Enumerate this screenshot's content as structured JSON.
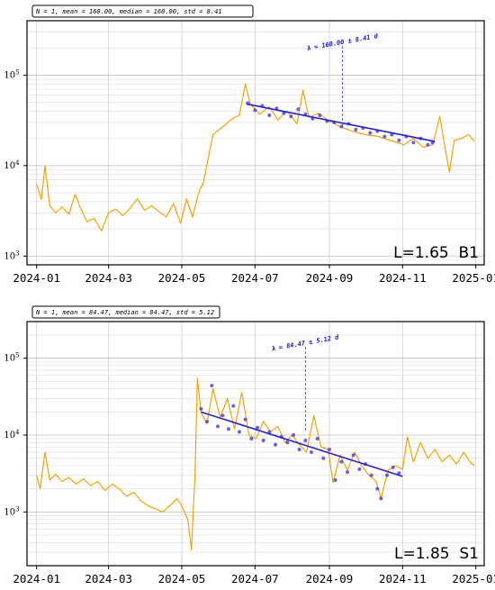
{
  "chart_data": [
    {
      "type": "line",
      "stats_text": "N = 1, mean = 160.00, median = 160.00, std = 8.41",
      "panel_label": "L=1.65  B1",
      "lambda_text": "λ = 160.00 ± 8.41 d",
      "lambda_date": "2024-09-12",
      "y_scale": "log",
      "ylim": [
        800,
        400000
      ],
      "xlim": [
        "2023-12-24",
        "2025-01-08"
      ],
      "x_ticks": [
        "2024-01",
        "2024-03",
        "2024-05",
        "2024-07",
        "2024-09",
        "2024-11",
        "2025-01"
      ],
      "y_ticks": [
        {
          "base": "10",
          "exp": "3",
          "value": 1000
        },
        {
          "base": "10",
          "exp": "4",
          "value": 10000
        },
        {
          "base": "10",
          "exp": "5",
          "value": 100000
        }
      ],
      "grid": true,
      "series": [
        {
          "role": "flux",
          "color": "#f5a300",
          "points": [
            [
              "2024-01-01",
              6300
            ],
            [
              "2024-01-05",
              4200
            ],
            [
              "2024-01-08",
              10000
            ],
            [
              "2024-01-12",
              3600
            ],
            [
              "2024-01-17",
              3000
            ],
            [
              "2024-01-22",
              3500
            ],
            [
              "2024-01-28",
              2900
            ],
            [
              "2024-02-02",
              4800
            ],
            [
              "2024-02-07",
              3300
            ],
            [
              "2024-02-12",
              2400
            ],
            [
              "2024-02-18",
              2600
            ],
            [
              "2024-02-24",
              1900
            ],
            [
              "2024-03-01",
              3000
            ],
            [
              "2024-03-07",
              3300
            ],
            [
              "2024-03-13",
              2800
            ],
            [
              "2024-03-19",
              3400
            ],
            [
              "2024-03-25",
              4300
            ],
            [
              "2024-03-31",
              3200
            ],
            [
              "2024-04-06",
              3600
            ],
            [
              "2024-04-12",
              3100
            ],
            [
              "2024-04-18",
              2700
            ],
            [
              "2024-04-24",
              3800
            ],
            [
              "2024-04-30",
              2300
            ],
            [
              "2024-05-05",
              4300
            ],
            [
              "2024-05-10",
              2700
            ],
            [
              "2024-05-15",
              5000
            ],
            [
              "2024-05-19",
              6500
            ],
            [
              "2024-05-23",
              12000
            ],
            [
              "2024-05-27",
              22000
            ],
            [
              "2024-06-01",
              25000
            ],
            [
              "2024-06-06",
              28000
            ],
            [
              "2024-06-12",
              33000
            ],
            [
              "2024-06-18",
              36000
            ],
            [
              "2024-06-23",
              80000
            ],
            [
              "2024-06-27",
              48000
            ],
            [
              "2024-07-05",
              37000
            ],
            [
              "2024-07-13",
              45000
            ],
            [
              "2024-07-20",
              32000
            ],
            [
              "2024-07-28",
              40000
            ],
            [
              "2024-08-05",
              29000
            ],
            [
              "2024-08-10",
              68000
            ],
            [
              "2024-08-15",
              34000
            ],
            [
              "2024-08-23",
              38000
            ],
            [
              "2024-09-01",
              31000
            ],
            [
              "2024-09-10",
              27000
            ],
            [
              "2024-09-20",
              24000
            ],
            [
              "2024-10-01",
              22000
            ],
            [
              "2024-10-12",
              21000
            ],
            [
              "2024-10-22",
              19000
            ],
            [
              "2024-11-02",
              17000
            ],
            [
              "2024-11-10",
              20000
            ],
            [
              "2024-11-18",
              16000
            ],
            [
              "2024-11-26",
              17000
            ],
            [
              "2024-12-02",
              35000
            ],
            [
              "2024-12-05",
              20000
            ],
            [
              "2024-12-10",
              8500
            ],
            [
              "2024-12-14",
              19000
            ],
            [
              "2024-12-20",
              20000
            ],
            [
              "2024-12-26",
              22000
            ],
            [
              "2024-12-31",
              18500
            ]
          ]
        },
        {
          "role": "fit-points",
          "color": "#5544dd",
          "points": [
            [
              "2024-06-25",
              49000
            ],
            [
              "2024-07-01",
              41000
            ],
            [
              "2024-07-07",
              46000
            ],
            [
              "2024-07-13",
              36000
            ],
            [
              "2024-07-19",
              43000
            ],
            [
              "2024-07-25",
              38000
            ],
            [
              "2024-07-31",
              35000
            ],
            [
              "2024-08-06",
              42000
            ],
            [
              "2024-08-12",
              37000
            ],
            [
              "2024-08-18",
              33000
            ],
            [
              "2024-08-24",
              36000
            ],
            [
              "2024-08-30",
              31000
            ],
            [
              "2024-09-05",
              30000
            ],
            [
              "2024-09-11",
              27000
            ],
            [
              "2024-09-17",
              29000
            ],
            [
              "2024-09-23",
              25000
            ],
            [
              "2024-09-29",
              26000
            ],
            [
              "2024-10-05",
              23000
            ],
            [
              "2024-10-11",
              24000
            ],
            [
              "2024-10-17",
              21000
            ],
            [
              "2024-10-23",
              22000
            ],
            [
              "2024-10-29",
              19000
            ],
            [
              "2024-11-04",
              21000
            ],
            [
              "2024-11-10",
              18000
            ],
            [
              "2024-11-16",
              20000
            ],
            [
              "2024-11-22",
              17000
            ],
            [
              "2024-11-26",
              18000
            ]
          ]
        },
        {
          "role": "fit-line",
          "color": "#2020ee",
          "points": [
            [
              "2024-06-24",
              48000
            ],
            [
              "2024-11-28",
              18500
            ]
          ]
        }
      ]
    },
    {
      "type": "line",
      "stats_text": "N = 1, mean = 84.47, median = 84.47, std = 5.12",
      "panel_label": "L=1.85  S1",
      "lambda_text": "λ = 84.47 ± 5.12 d",
      "lambda_date": "2024-08-12",
      "y_scale": "log",
      "ylim": [
        200,
        300000
      ],
      "xlim": [
        "2023-12-24",
        "2025-01-08"
      ],
      "x_ticks": [
        "2024-01",
        "2024-03",
        "2024-05",
        "2024-07",
        "2024-09",
        "2024-11",
        "2025-01"
      ],
      "y_ticks": [
        {
          "base": "10",
          "exp": "3",
          "value": 1000
        },
        {
          "base": "10",
          "exp": "4",
          "value": 10000
        },
        {
          "base": "10",
          "exp": "5",
          "value": 100000
        }
      ],
      "grid": true,
      "series": [
        {
          "role": "flux",
          "color": "#f5a300",
          "points": [
            [
              "2024-01-01",
              3000
            ],
            [
              "2024-01-04",
              2000
            ],
            [
              "2024-01-08",
              6000
            ],
            [
              "2024-01-12",
              2600
            ],
            [
              "2024-01-17",
              3100
            ],
            [
              "2024-01-22",
              2500
            ],
            [
              "2024-01-28",
              2800
            ],
            [
              "2024-02-03",
              2300
            ],
            [
              "2024-02-09",
              2700
            ],
            [
              "2024-02-15",
              2200
            ],
            [
              "2024-02-21",
              2500
            ],
            [
              "2024-02-27",
              1900
            ],
            [
              "2024-03-04",
              2300
            ],
            [
              "2024-03-10",
              2000
            ],
            [
              "2024-03-16",
              1600
            ],
            [
              "2024-03-22",
              1800
            ],
            [
              "2024-03-28",
              1400
            ],
            [
              "2024-04-03",
              1200
            ],
            [
              "2024-04-09",
              1100
            ],
            [
              "2024-04-15",
              1000
            ],
            [
              "2024-04-21",
              1200
            ],
            [
              "2024-04-27",
              1500
            ],
            [
              "2024-05-01",
              1200
            ],
            [
              "2024-05-06",
              800
            ],
            [
              "2024-05-09",
              320
            ],
            [
              "2024-05-12",
              3000
            ],
            [
              "2024-05-14",
              55000
            ],
            [
              "2024-05-17",
              20000
            ],
            [
              "2024-05-22",
              14000
            ],
            [
              "2024-05-27",
              40000
            ],
            [
              "2024-06-02",
              17000
            ],
            [
              "2024-06-08",
              30000
            ],
            [
              "2024-06-14",
              12000
            ],
            [
              "2024-06-20",
              36000
            ],
            [
              "2024-06-26",
              10000
            ],
            [
              "2024-07-02",
              9000
            ],
            [
              "2024-07-08",
              15000
            ],
            [
              "2024-07-14",
              11000
            ],
            [
              "2024-07-20",
              13000
            ],
            [
              "2024-07-26",
              8000
            ],
            [
              "2024-08-01",
              10000
            ],
            [
              "2024-08-07",
              7500
            ],
            [
              "2024-08-13",
              6000
            ],
            [
              "2024-08-19",
              18000
            ],
            [
              "2024-08-25",
              7000
            ],
            [
              "2024-08-31",
              6500
            ],
            [
              "2024-09-04",
              2400
            ],
            [
              "2024-09-10",
              5500
            ],
            [
              "2024-09-16",
              3500
            ],
            [
              "2024-09-22",
              6000
            ],
            [
              "2024-09-28",
              4000
            ],
            [
              "2024-10-04",
              3000
            ],
            [
              "2024-10-10",
              2500
            ],
            [
              "2024-10-14",
              1500
            ],
            [
              "2024-10-20",
              3500
            ],
            [
              "2024-10-26",
              4000
            ],
            [
              "2024-11-01",
              3600
            ],
            [
              "2024-11-05",
              9500
            ],
            [
              "2024-11-10",
              4500
            ],
            [
              "2024-11-16",
              8000
            ],
            [
              "2024-11-22",
              5000
            ],
            [
              "2024-11-28",
              6500
            ],
            [
              "2024-12-04",
              4500
            ],
            [
              "2024-12-10",
              5500
            ],
            [
              "2024-12-16",
              4200
            ],
            [
              "2024-12-22",
              6000
            ],
            [
              "2024-12-28",
              4300
            ],
            [
              "2024-12-31",
              4000
            ]
          ]
        },
        {
          "role": "fit-points",
          "color": "#5544dd",
          "points": [
            [
              "2024-05-17",
              22000
            ],
            [
              "2024-05-22",
              15000
            ],
            [
              "2024-05-26",
              44000
            ],
            [
              "2024-05-31",
              13000
            ],
            [
              "2024-06-04",
              18000
            ],
            [
              "2024-06-09",
              12000
            ],
            [
              "2024-06-13",
              24000
            ],
            [
              "2024-06-18",
              11000
            ],
            [
              "2024-06-23",
              16000
            ],
            [
              "2024-06-28",
              9000
            ],
            [
              "2024-07-03",
              12500
            ],
            [
              "2024-07-08",
              8500
            ],
            [
              "2024-07-13",
              11000
            ],
            [
              "2024-07-18",
              7500
            ],
            [
              "2024-07-23",
              9500
            ],
            [
              "2024-07-28",
              8000
            ],
            [
              "2024-08-02",
              10000
            ],
            [
              "2024-08-07",
              6500
            ],
            [
              "2024-08-12",
              8500
            ],
            [
              "2024-08-17",
              6000
            ],
            [
              "2024-08-22",
              9000
            ],
            [
              "2024-08-27",
              5000
            ],
            [
              "2024-09-01",
              6500
            ],
            [
              "2024-09-06",
              2600
            ],
            [
              "2024-09-11",
              4500
            ],
            [
              "2024-09-16",
              3300
            ],
            [
              "2024-09-21",
              5500
            ],
            [
              "2024-09-26",
              3600
            ],
            [
              "2024-10-01",
              4200
            ],
            [
              "2024-10-06",
              3000
            ],
            [
              "2024-10-11",
              2000
            ],
            [
              "2024-10-14",
              1500
            ],
            [
              "2024-10-19",
              3000
            ],
            [
              "2024-10-24",
              3800
            ],
            [
              "2024-10-29",
              3200
            ]
          ]
        },
        {
          "role": "fit-line",
          "color": "#2020ee",
          "points": [
            [
              "2024-05-17",
              20000
            ],
            [
              "2024-11-01",
              2900
            ]
          ]
        }
      ]
    }
  ]
}
